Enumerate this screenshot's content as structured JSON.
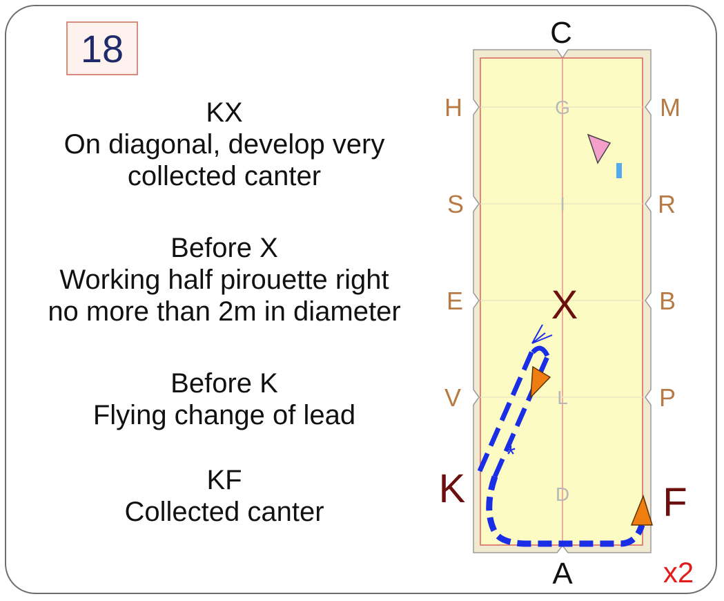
{
  "test_number": "18",
  "instructions": [
    {
      "marker": "KX",
      "text": [
        "On diagonal, develop very",
        "collected canter"
      ]
    },
    {
      "marker": "Before X",
      "text": [
        "Working half pirouette right",
        "no more than 2m in diameter"
      ]
    },
    {
      "marker": "Before K",
      "text": [
        "Flying change of lead"
      ]
    },
    {
      "marker": "KF",
      "text": [
        "Collected canter"
      ]
    }
  ],
  "arena": {
    "top_letter": "C",
    "bottom_letter": "A",
    "left_letters": [
      "H",
      "S",
      "E",
      "V"
    ],
    "right_letters": [
      "M",
      "R",
      "B",
      "P"
    ],
    "center_letters": [
      "G",
      "I",
      "L",
      "D"
    ],
    "highlight_center": "X",
    "highlight_left": "K",
    "highlight_right": "F",
    "repeat": "x2"
  },
  "colors": {
    "arena_fill": "#fdfbc4",
    "arena_border": "#e8e0c8",
    "path": "#1a2ee6",
    "letter_brown": "#b87a44",
    "highlight": "#6b0f0f",
    "repeat": "#e21b1b",
    "start_marker": "#ef7d10",
    "pink_marker": "#f49fc9",
    "blue_dash": "#55a9ee"
  },
  "icons": [
    "triangle-marker-icon",
    "arrowhead-icon",
    "asterisk-icon"
  ]
}
